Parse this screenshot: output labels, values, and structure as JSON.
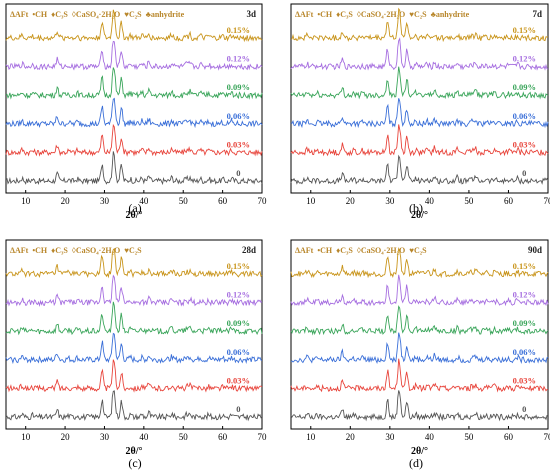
{
  "chart_data": [
    {
      "panel": "(a)",
      "age": "3d",
      "type": "line",
      "xlabel": "2θ/°",
      "ylabel": "",
      "xlim": [
        5,
        70
      ],
      "x_ticks": [
        10,
        20,
        30,
        40,
        50,
        60,
        70
      ],
      "legend": [
        "ΔAFt",
        "•CH",
        "♦C₃S",
        "◊CaSO₄·2H₂O",
        "♥C₂S",
        "♣anhydrite"
      ],
      "series": [
        {
          "name": "0",
          "color": "#555555"
        },
        {
          "name": "0.03%",
          "color": "#e8453c"
        },
        {
          "name": "0.06%",
          "color": "#3a6fd8"
        },
        {
          "name": "0.09%",
          "color": "#3aa55a"
        },
        {
          "name": "0.12%",
          "color": "#a66ee0"
        },
        {
          "name": "0.15%",
          "color": "#c9951c"
        }
      ]
    },
    {
      "panel": "(b)",
      "age": "7d",
      "type": "line",
      "xlabel": "2θ/°",
      "ylabel": "",
      "xlim": [
        5,
        70
      ],
      "x_ticks": [
        10,
        20,
        30,
        40,
        50,
        60,
        70
      ],
      "legend": [
        "ΔAFt",
        "•CH",
        "♦C₃S",
        "◊CaSO₄·2H₂O",
        "♥C₂S",
        "♣anhydrite"
      ],
      "series": [
        {
          "name": "0",
          "color": "#555555"
        },
        {
          "name": "0.03%",
          "color": "#e8453c"
        },
        {
          "name": "0.06%",
          "color": "#3a6fd8"
        },
        {
          "name": "0.09%",
          "color": "#3aa55a"
        },
        {
          "name": "0.12%",
          "color": "#a66ee0"
        },
        {
          "name": "0.15%",
          "color": "#c9951c"
        }
      ]
    },
    {
      "panel": "(c)",
      "age": "28d",
      "type": "line",
      "xlabel": "2θ/°",
      "ylabel": "",
      "xlim": [
        5,
        70
      ],
      "x_ticks": [
        10,
        20,
        30,
        40,
        50,
        60,
        70
      ],
      "legend": [
        "ΔAFt",
        "•CH",
        "♦C₃S",
        "◊CaSO₄·2H₂O",
        "♥C₂S"
      ],
      "series": [
        {
          "name": "0",
          "color": "#555555"
        },
        {
          "name": "0.03%",
          "color": "#e8453c"
        },
        {
          "name": "0.06%",
          "color": "#3a6fd8"
        },
        {
          "name": "0.09%",
          "color": "#3aa55a"
        },
        {
          "name": "0.12%",
          "color": "#a66ee0"
        },
        {
          "name": "0.15%",
          "color": "#c9951c"
        }
      ]
    },
    {
      "panel": "(d)",
      "age": "90d",
      "type": "line",
      "xlabel": "2θ/°",
      "ylabel": "",
      "xlim": [
        5,
        70
      ],
      "x_ticks": [
        10,
        20,
        30,
        40,
        50,
        60,
        70
      ],
      "legend": [
        "ΔAFt",
        "•CH",
        "♦C₃S",
        "◊CaSO₄·2H₂O",
        "♥C₂S"
      ],
      "series": [
        {
          "name": "0",
          "color": "#555555"
        },
        {
          "name": "0.03%",
          "color": "#e8453c"
        },
        {
          "name": "0.06%",
          "color": "#3a6fd8"
        },
        {
          "name": "0.09%",
          "color": "#3aa55a"
        },
        {
          "name": "0.12%",
          "color": "#a66ee0"
        },
        {
          "name": "0.15%",
          "color": "#c9951c"
        }
      ]
    }
  ]
}
